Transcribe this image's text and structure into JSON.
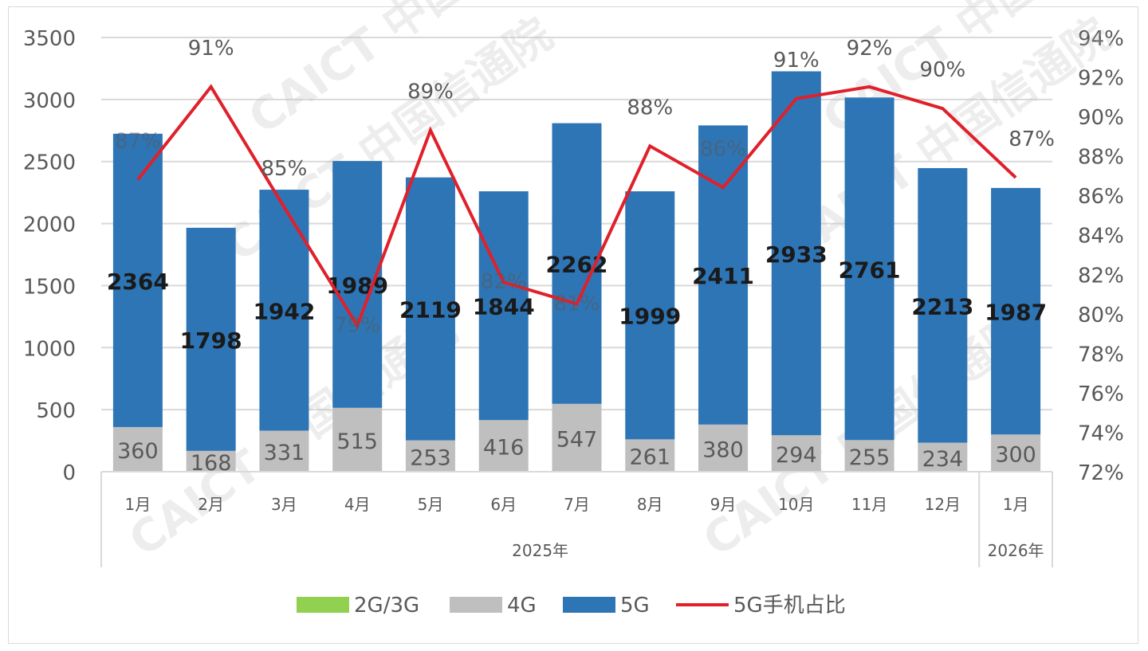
{
  "chart_data": {
    "type": "bar",
    "stacked": true,
    "categories": [
      "1月",
      "2月",
      "3月",
      "4月",
      "5月",
      "6月",
      "7月",
      "8月",
      "9月",
      "10月",
      "11月",
      "12月",
      "1月"
    ],
    "groups": [
      {
        "label": "2025年",
        "count": 12
      },
      {
        "label": "2026年",
        "count": 1
      }
    ],
    "series": [
      {
        "name": "2G/3G",
        "color": "#92d050",
        "values": [
          0,
          0,
          0,
          0,
          0,
          0,
          0,
          0,
          0,
          0,
          0,
          0,
          0
        ]
      },
      {
        "name": "4G",
        "color": "#bfbfbf",
        "values": [
          360,
          168,
          331,
          515,
          253,
          416,
          547,
          261,
          380,
          294,
          255,
          234,
          300
        ]
      },
      {
        "name": "5G",
        "color": "#2e75b6",
        "values": [
          2364,
          1798,
          1942,
          1989,
          2119,
          1844,
          2262,
          1999,
          2411,
          2933,
          2761,
          2213,
          1987
        ]
      }
    ],
    "line": {
      "name": "5G手机占比",
      "color": "#e0202a",
      "axis": "right",
      "values": [
        86.8,
        91.5,
        85.4,
        79.4,
        89.3,
        81.6,
        80.5,
        88.5,
        86.4,
        90.9,
        91.5,
        90.4,
        86.9
      ],
      "labels": [
        "87%",
        "91%",
        "85%",
        "79%",
        "89%",
        "82%",
        "81%",
        "88%",
        "86%",
        "91%",
        "92%",
        "90%",
        "87%"
      ]
    },
    "ylim": [
      0,
      3500
    ],
    "yticks": [
      "0",
      "500",
      "1000",
      "1500",
      "2000",
      "2500",
      "3000",
      "3500"
    ],
    "y2lim": [
      72,
      94
    ],
    "y2ticks": [
      "72%",
      "74%",
      "76%",
      "78%",
      "80%",
      "82%",
      "84%",
      "86%",
      "88%",
      "90%",
      "92%",
      "94%"
    ],
    "grid": true,
    "legend": "bottom",
    "watermark": "CAICT 中国信通院"
  }
}
